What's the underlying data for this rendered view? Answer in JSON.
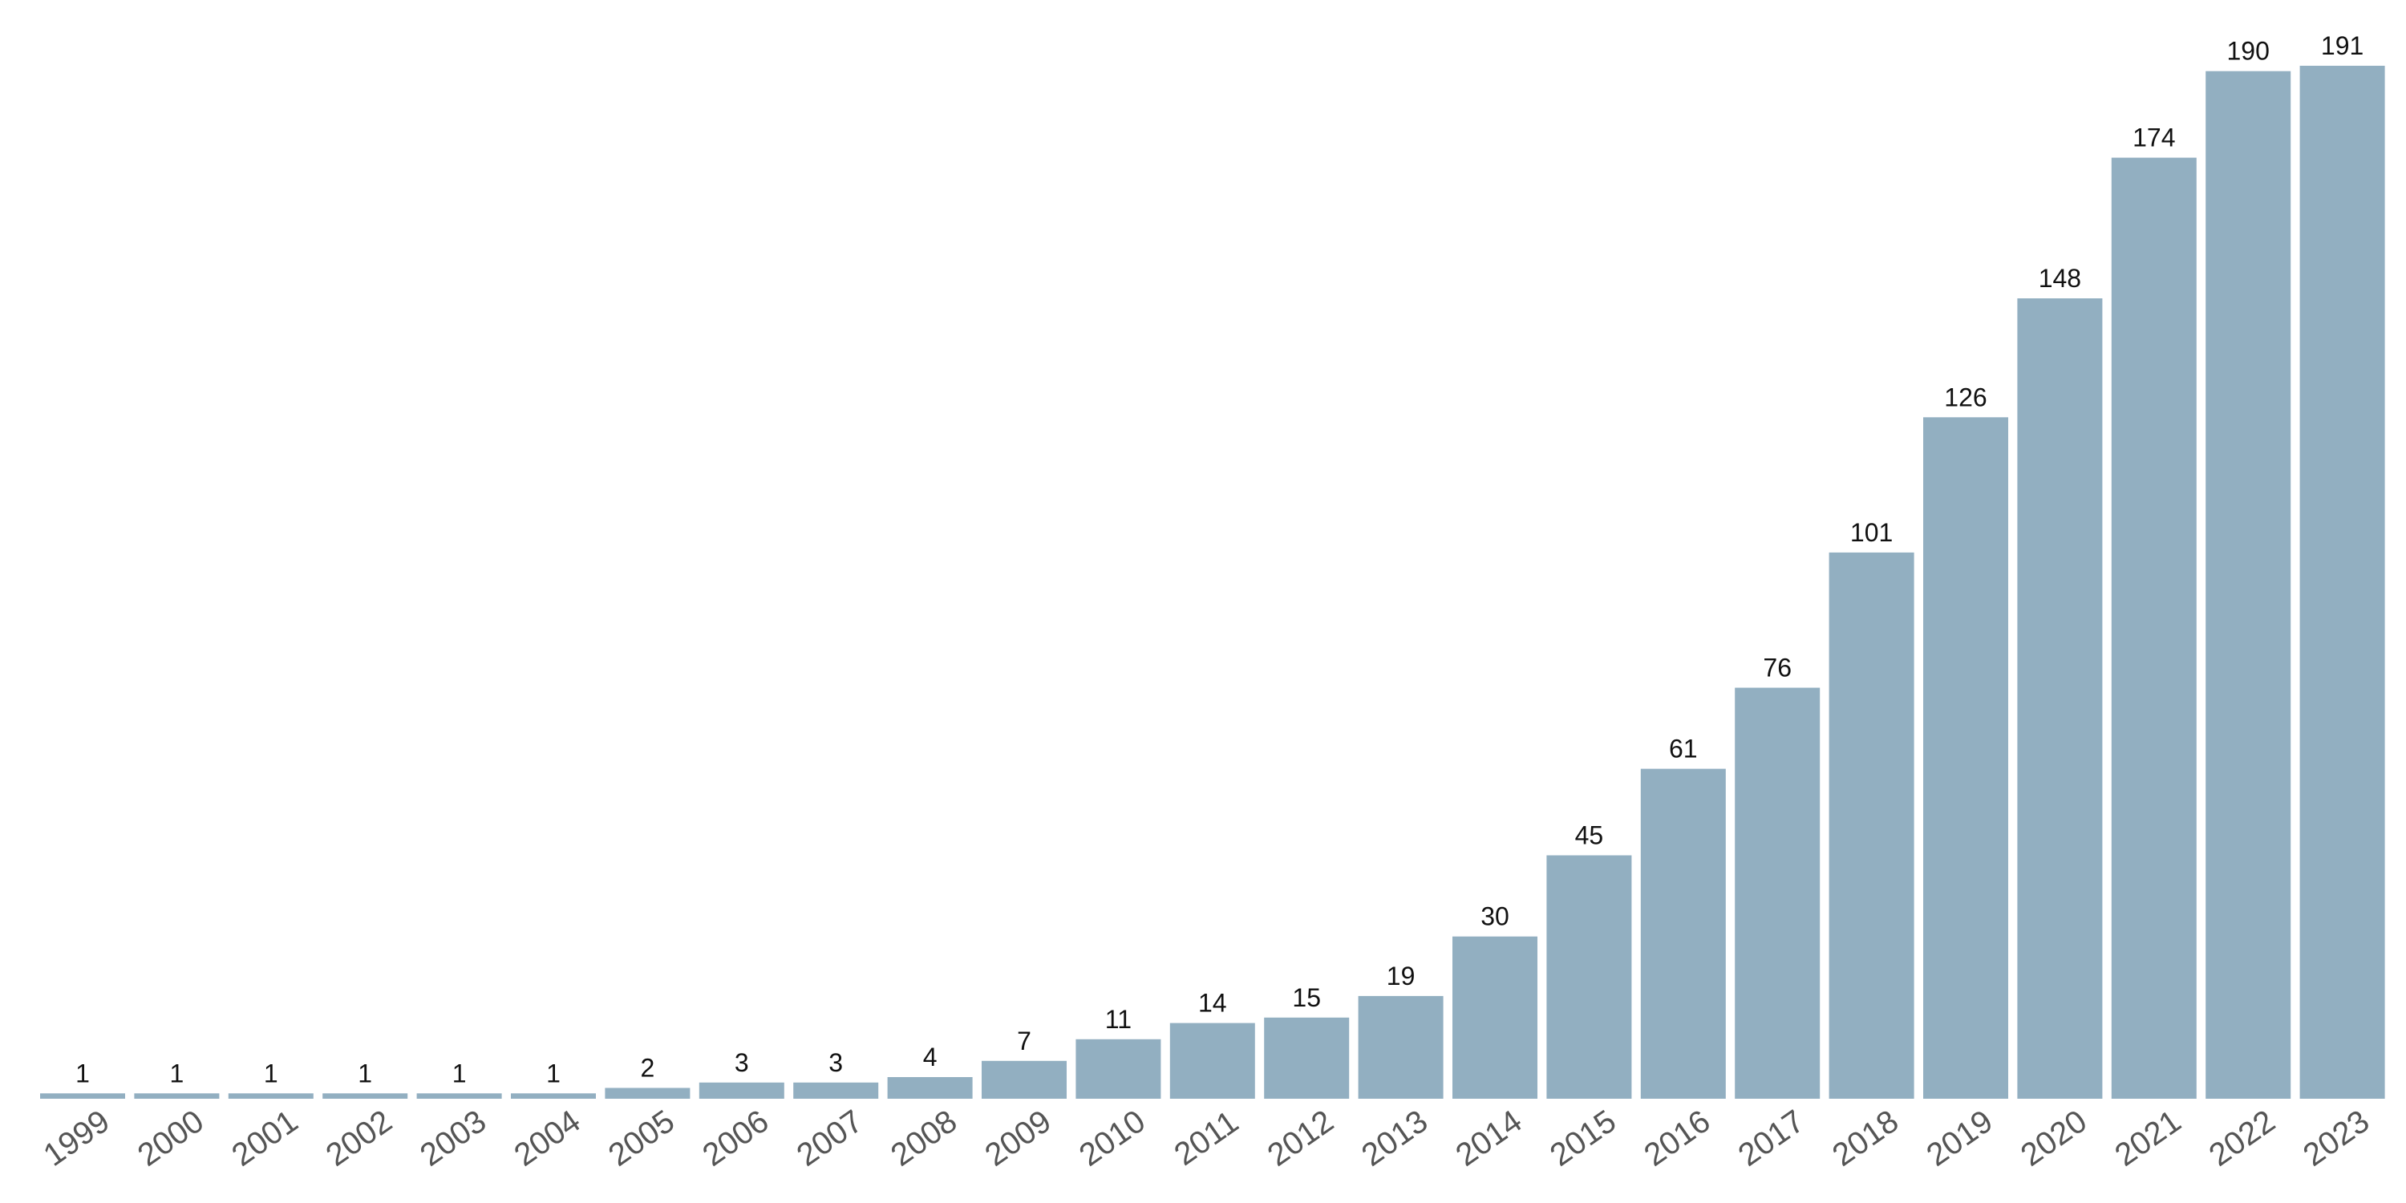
{
  "chart_data": {
    "type": "bar",
    "title": "",
    "xlabel": "",
    "ylabel": "",
    "categories": [
      "1999",
      "2000",
      "2001",
      "2002",
      "2003",
      "2004",
      "2005",
      "2006",
      "2007",
      "2008",
      "2009",
      "2010",
      "2011",
      "2012",
      "2013",
      "2014",
      "2015",
      "2016",
      "2017",
      "2018",
      "2019",
      "2020",
      "2021",
      "2022",
      "2023"
    ],
    "values": [
      1,
      1,
      1,
      1,
      1,
      1,
      2,
      3,
      3,
      4,
      7,
      11,
      14,
      15,
      19,
      30,
      45,
      61,
      76,
      101,
      126,
      148,
      174,
      190,
      191
    ],
    "ylim": [
      0,
      191
    ],
    "grid": false,
    "data_labels": true,
    "bar_color": "#92afc1",
    "tick_label_color": "#555555",
    "data_label_color": "#111111"
  }
}
